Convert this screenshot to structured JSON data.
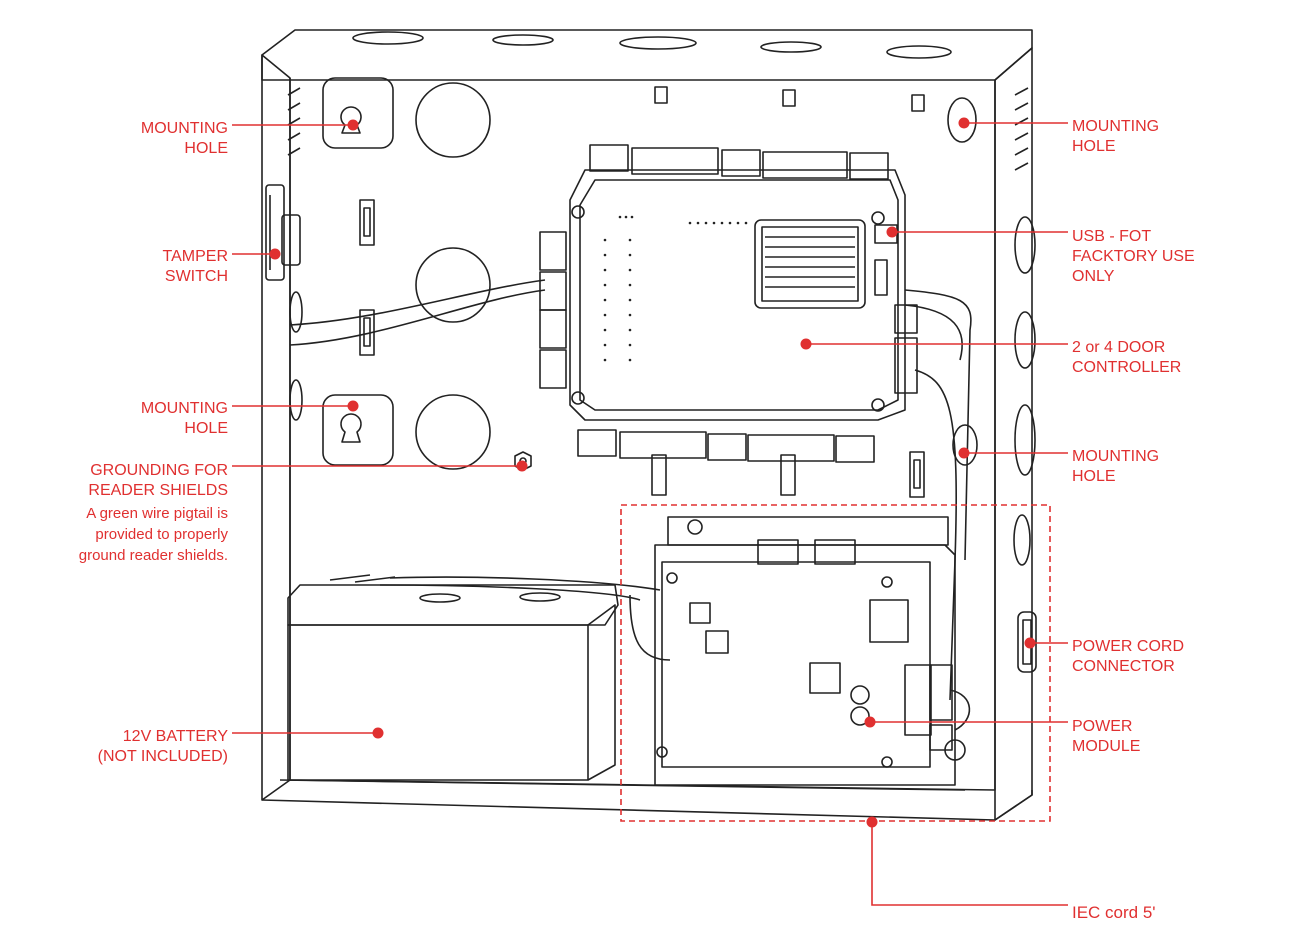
{
  "accent_color": "#e03030",
  "line_color": "#222222",
  "labels": {
    "mounting_hole_top_left": [
      "MOUNTING",
      "HOLE"
    ],
    "tamper_switch": [
      "TAMPER",
      "SWITCH"
    ],
    "mounting_hole_mid_left": [
      "MOUNTING",
      "HOLE"
    ],
    "grounding": [
      "GROUNDING FOR",
      "READER SHIELDS"
    ],
    "grounding_note": [
      "A green wire pigtail is",
      "provided to properly",
      "ground reader shields."
    ],
    "battery": [
      "12V BATTERY",
      "(NOT INCLUDED)"
    ],
    "mounting_hole_top_right": [
      "MOUNTING",
      "HOLE"
    ],
    "usb": [
      "USB - FOT",
      "FACKTORY USE",
      "ONLY"
    ],
    "controller": [
      "2 or 4 DOOR",
      "CONTROLLER"
    ],
    "mounting_hole_mid_right": [
      "MOUNTING",
      "HOLE"
    ],
    "power_cord": [
      "POWER CORD",
      "CONNECTOR"
    ],
    "power_module": [
      "POWER",
      "MODULE"
    ],
    "iec_cord": "IEC cord 5'"
  }
}
